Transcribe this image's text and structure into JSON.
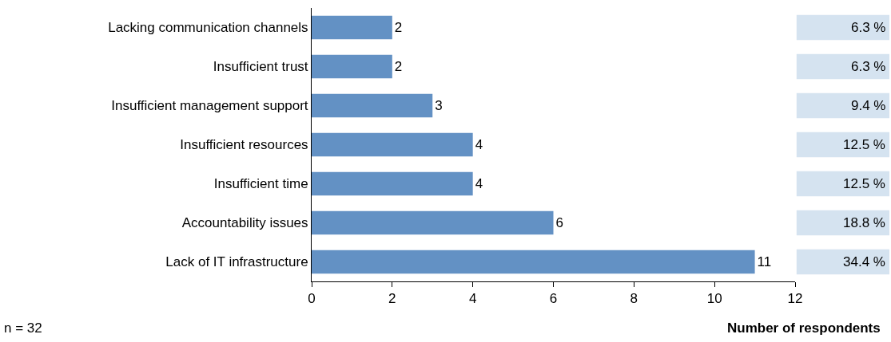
{
  "chart_data": {
    "type": "bar",
    "orientation": "horizontal",
    "categories": [
      "Lacking communication channels",
      "Insufficient trust",
      "Insufficient management support",
      "Insufficient resources",
      "Insufficient time",
      "Accountability issues",
      "Lack of IT infrastructure"
    ],
    "values": [
      2,
      2,
      3,
      4,
      4,
      6,
      11
    ],
    "color": "#6391c4",
    "data_labels": true,
    "xlim": [
      0,
      12
    ],
    "xticks": [
      0,
      2,
      4,
      6,
      8,
      10,
      12
    ],
    "grid": false,
    "xlabel": "Number of respondents",
    "annotations": [
      "6.3 %",
      "6.3 %",
      "9.4 %",
      "12.5 %",
      "12.5 %",
      "18.8 %",
      "34.4 %",
      "n = 32"
    ]
  }
}
